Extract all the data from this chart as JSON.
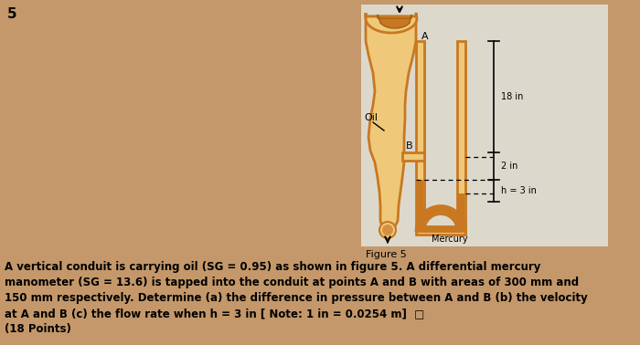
{
  "bg_color": "#c4986a",
  "panel_color": "#ddd8cc",
  "conduit_fill": "#f0c87a",
  "conduit_border": "#c87820",
  "mercury_fill": "#c87820",
  "title_num": "5",
  "figure_label": "Figure 5",
  "oil_label": "Oil",
  "mercury_label": "Mercury",
  "point_A": "A",
  "point_B": "B",
  "dim_18": "18 in",
  "dim_2": "2 in",
  "dim_h": "h = 3 in",
  "body_text_lines": [
    "A vertical conduit is carrying oil (SG = 0.95) as shown in figure 5. A differential mercury",
    "manometer (SG = 13.6) is tapped into the conduit at points A and B with areas of 300 mm and",
    "150 mm respectively. Determine (a) the difference in pressure between A and B (b) the velocity",
    "at A and B (c) the flow rate when h = 3 in [ Note: 1 in = 0.0254 m]  □"
  ],
  "points_label": "(18 Points)"
}
